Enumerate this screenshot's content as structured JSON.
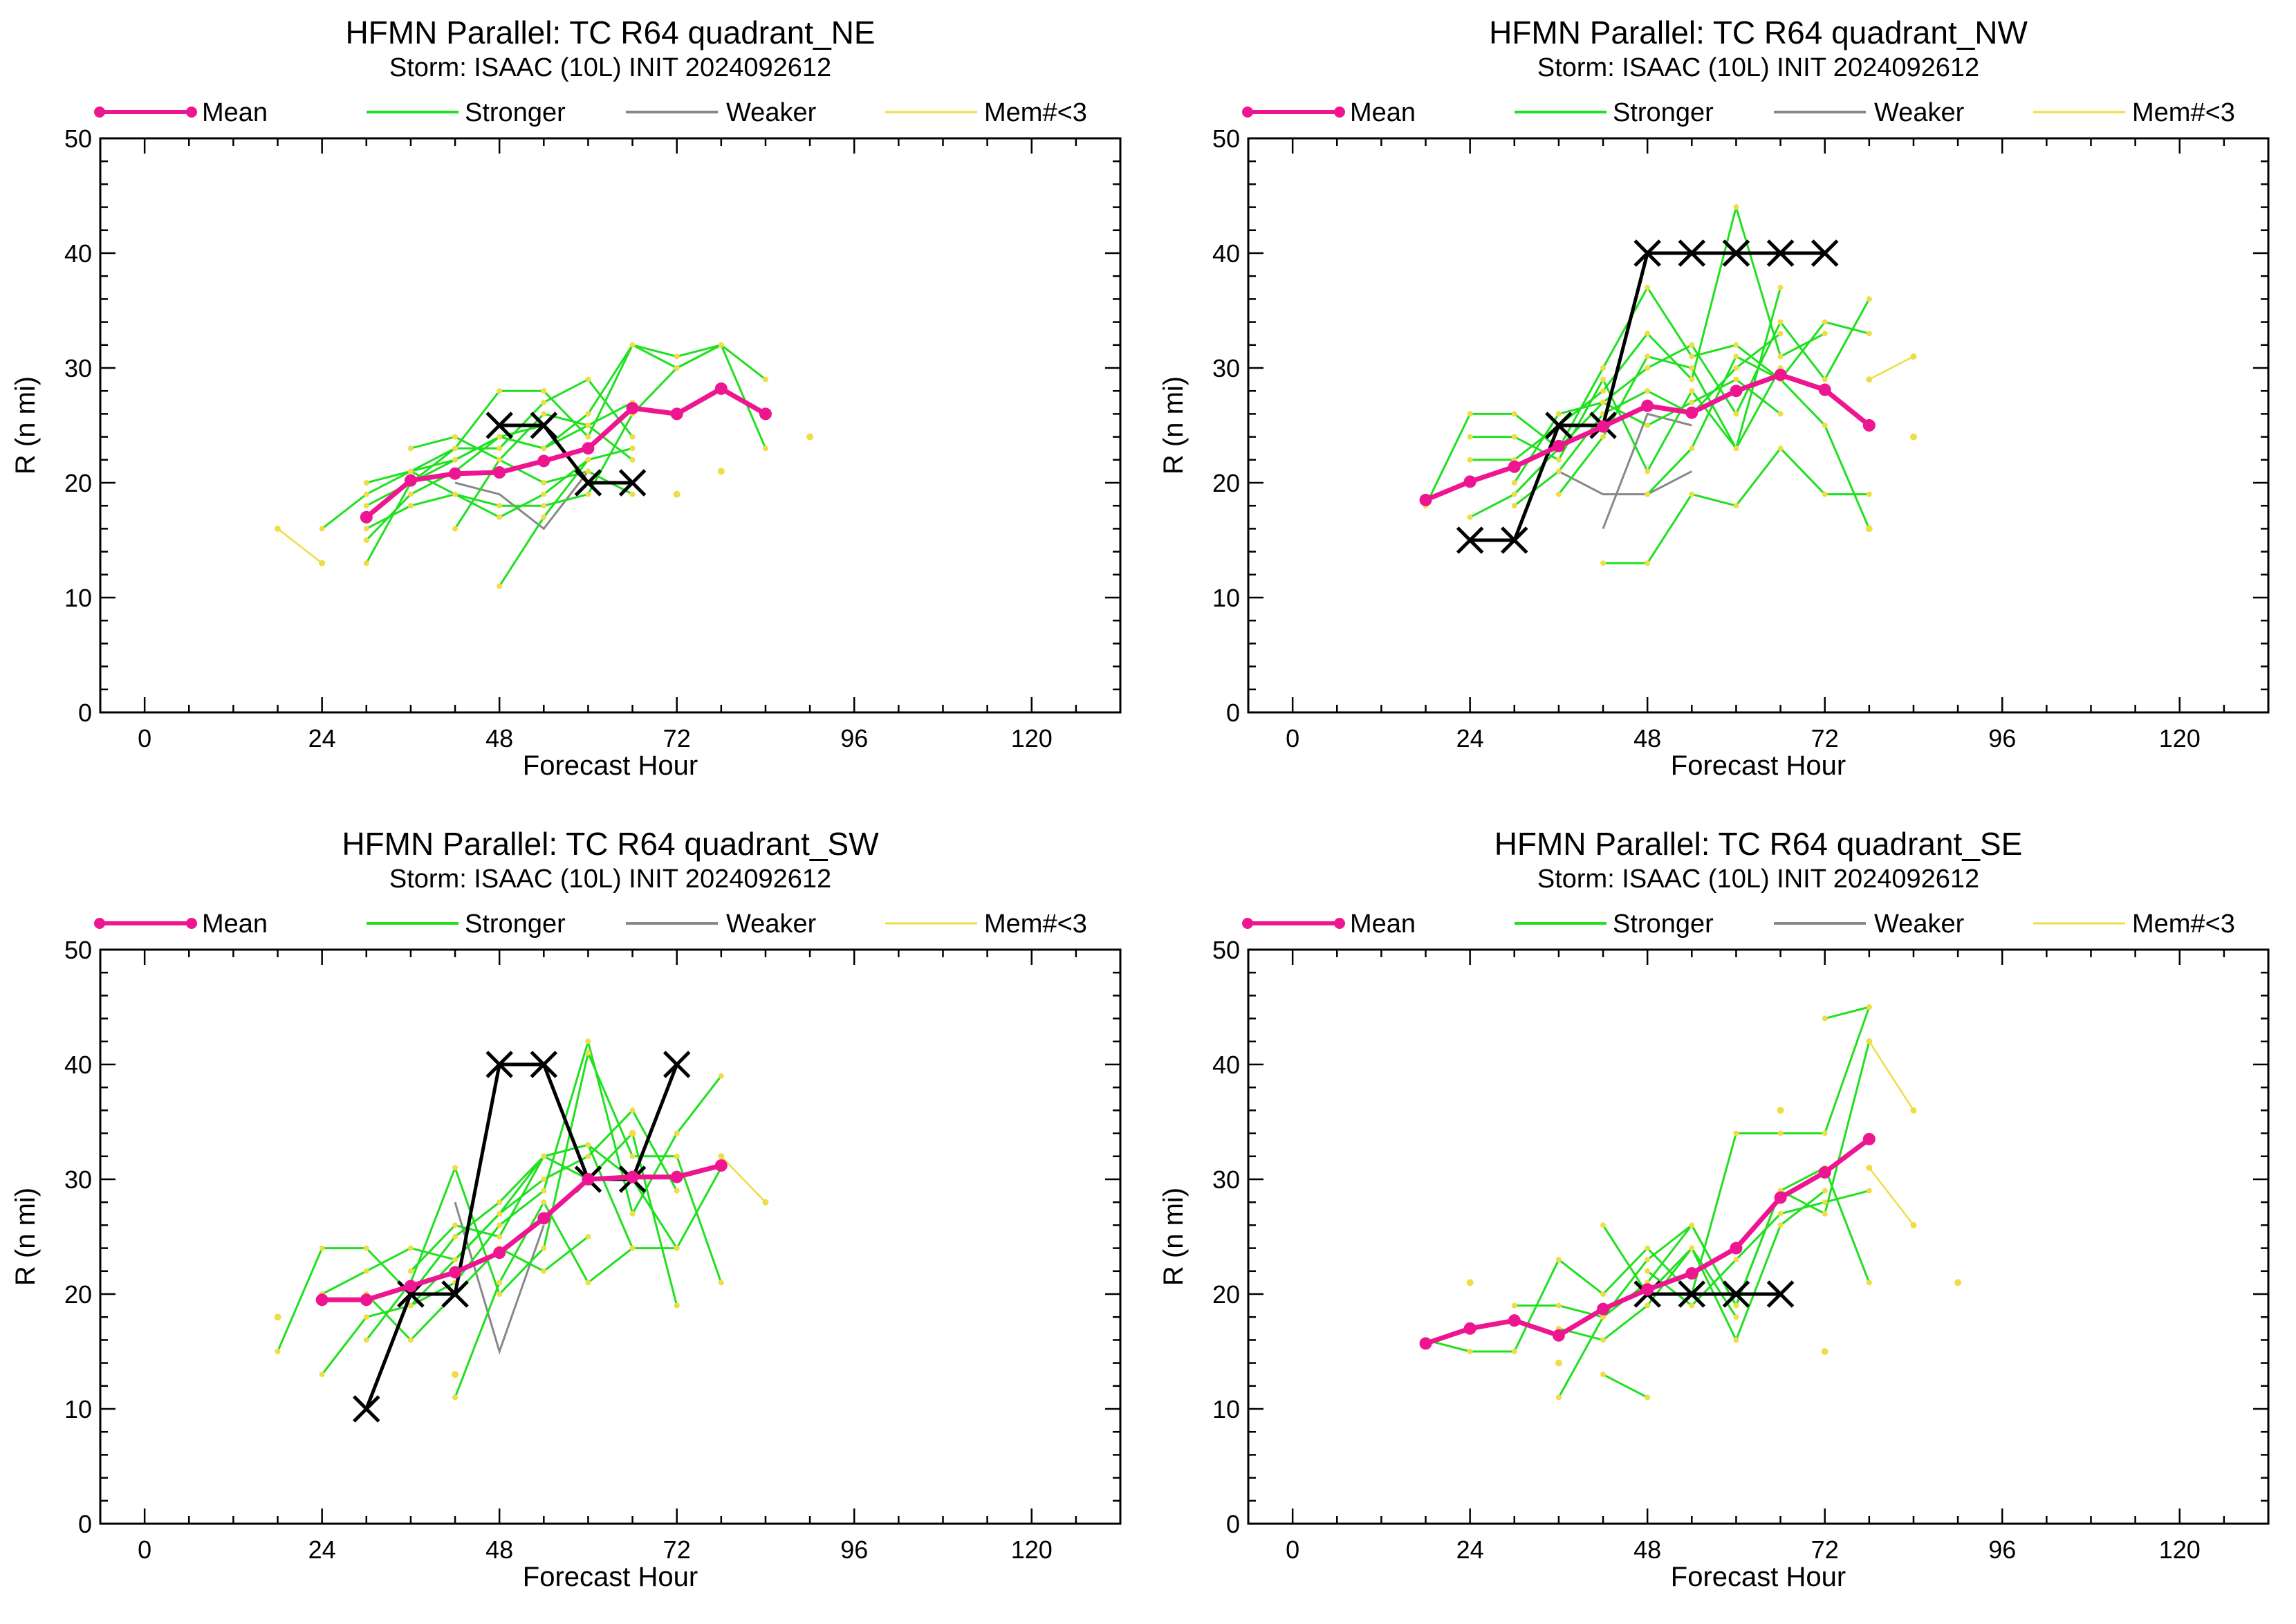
{
  "figure": {
    "legend": [
      {
        "label": "Mean",
        "color": "#ee1690"
      },
      {
        "label": "Stronger",
        "color": "#20e020"
      },
      {
        "label": "Weaker",
        "color": "#888888"
      },
      {
        "label": "Mem#<3",
        "color": "#eedd44"
      }
    ],
    "x_ticks": [
      "0",
      "24",
      "48",
      "72",
      "96",
      "120"
    ],
    "y_ticks": [
      "0",
      "10",
      "20",
      "30",
      "40",
      "50"
    ]
  },
  "chart_data": [
    {
      "type": "line",
      "title": "HFMN Parallel: TC  R64 quadrant_NE",
      "subtitle": "Storm: ISAAC (10L) INIT 2024092612",
      "xlabel": "Forecast Hour",
      "ylabel": "R (n mi)",
      "xlim": [
        -6,
        132
      ],
      "ylim": [
        0,
        50
      ],
      "mean": {
        "name": "Mean",
        "x": [
          30,
          36,
          42,
          48,
          54,
          60,
          66,
          72,
          78,
          84
        ],
        "y": [
          17,
          20.2,
          20.8,
          20.9,
          21.9,
          23,
          26.5,
          26,
          28.2,
          26
        ]
      },
      "best_track": {
        "x": [
          48,
          54,
          60,
          66
        ],
        "y": [
          25,
          25,
          20,
          20
        ]
      },
      "stronger": [
        {
          "x": [
            24,
            30,
            36,
            42,
            48,
            54
          ],
          "y": [
            16,
            19,
            21,
            22,
            24,
            25
          ]
        },
        {
          "x": [
            30,
            36,
            42,
            48,
            54,
            60,
            66,
            72,
            78,
            84
          ],
          "y": [
            18,
            20,
            22,
            24,
            23,
            26,
            32,
            31,
            32,
            29
          ]
        },
        {
          "x": [
            30,
            36,
            42,
            48,
            54,
            60,
            66
          ],
          "y": [
            13,
            20,
            23,
            23,
            27,
            29,
            24
          ]
        },
        {
          "x": [
            30,
            36,
            42,
            48,
            54,
            60,
            66,
            72,
            78
          ],
          "y": [
            20,
            21,
            19,
            18,
            18,
            19,
            26,
            30,
            32
          ]
        },
        {
          "x": [
            36,
            42,
            48,
            54,
            60,
            66,
            72,
            78,
            84
          ],
          "y": [
            21,
            23,
            28,
            28,
            24,
            32,
            30,
            32,
            23
          ]
        },
        {
          "x": [
            30,
            36,
            42,
            48,
            54,
            60,
            66
          ],
          "y": [
            15,
            19,
            21,
            24,
            23,
            25,
            27
          ]
        },
        {
          "x": [
            36,
            42,
            48,
            54,
            60,
            66
          ],
          "y": [
            23,
            24,
            22,
            26,
            25,
            22
          ]
        },
        {
          "x": [
            42,
            48,
            54,
            60,
            66
          ],
          "y": [
            16,
            22,
            20,
            21,
            19
          ]
        },
        {
          "x": [
            48,
            54,
            60,
            66
          ],
          "y": [
            11,
            17,
            22,
            23
          ]
        },
        {
          "x": [
            30,
            36,
            42,
            48,
            54,
            60
          ],
          "y": [
            16,
            18,
            19,
            17,
            19,
            22
          ]
        }
      ],
      "weaker": [
        {
          "x": [
            42,
            48,
            54,
            60
          ],
          "y": [
            20,
            19,
            16,
            21
          ]
        }
      ],
      "members_lt3": [
        {
          "x": [
            18,
            24
          ],
          "y": [
            16,
            13
          ]
        }
      ],
      "isolated_points": {
        "x": [
          90,
          78,
          72
        ],
        "y": [
          24,
          21,
          19
        ]
      }
    },
    {
      "type": "line",
      "title": "HFMN Parallel: TC  R64 quadrant_NW",
      "subtitle": "Storm: ISAAC (10L) INIT 2024092612",
      "xlabel": "Forecast Hour",
      "ylabel": "R (n mi)",
      "xlim": [
        -6,
        132
      ],
      "ylim": [
        0,
        50
      ],
      "mean": {
        "name": "Mean",
        "x": [
          18,
          24,
          30,
          36,
          42,
          48,
          54,
          60,
          66,
          72,
          78
        ],
        "y": [
          18.5,
          20.1,
          21.4,
          23.2,
          24.9,
          26.7,
          26.1,
          28,
          29.4,
          28.1,
          25
        ]
      },
      "best_track": {
        "x": [
          24,
          30,
          36,
          42,
          48,
          54,
          60,
          66,
          72
        ],
        "y": [
          15,
          15,
          25,
          25,
          40,
          40,
          40,
          40,
          40
        ]
      },
      "stronger": [
        {
          "x": [
            18,
            24,
            30,
            36,
            42,
            48,
            54,
            60,
            66,
            72,
            78
          ],
          "y": [
            18,
            26,
            26,
            23,
            30,
            37,
            31,
            32,
            29,
            34,
            33
          ]
        },
        {
          "x": [
            24,
            30,
            36,
            42,
            48,
            54,
            60,
            66,
            72
          ],
          "y": [
            22,
            22,
            25,
            28,
            33,
            29,
            44,
            31,
            33
          ]
        },
        {
          "x": [
            24,
            30,
            36,
            42,
            48,
            54,
            60,
            66,
            72,
            78
          ],
          "y": [
            17,
            19,
            23,
            27,
            30,
            32,
            26,
            34,
            29,
            36
          ]
        },
        {
          "x": [
            24,
            30,
            36,
            42,
            48,
            54,
            60,
            66
          ],
          "y": [
            24,
            24,
            22,
            29,
            21,
            28,
            23,
            37
          ]
        },
        {
          "x": [
            30,
            36,
            42,
            48,
            54,
            60,
            66
          ],
          "y": [
            18,
            21,
            26,
            28,
            26,
            30,
            33
          ]
        },
        {
          "x": [
            36,
            42,
            48,
            54,
            60,
            66
          ],
          "y": [
            19,
            24,
            31,
            30,
            23,
            30
          ]
        },
        {
          "x": [
            42,
            48,
            54,
            60,
            66,
            72,
            78
          ],
          "y": [
            13,
            13,
            19,
            18,
            23,
            19,
            19
          ]
        },
        {
          "x": [
            48,
            54,
            60,
            66,
            72,
            78
          ],
          "y": [
            19,
            23,
            31,
            29,
            25,
            16
          ]
        },
        {
          "x": [
            30,
            36,
            42,
            48,
            54,
            60,
            66
          ],
          "y": [
            20,
            26,
            27,
            25,
            27,
            29,
            26
          ]
        }
      ],
      "weaker": [
        {
          "x": [
            36,
            42,
            48,
            54
          ],
          "y": [
            21,
            19,
            19,
            21
          ]
        },
        {
          "x": [
            42,
            48,
            54
          ],
          "y": [
            16,
            26,
            25
          ]
        }
      ],
      "members_lt3": [
        {
          "x": [
            78,
            84
          ],
          "y": [
            29,
            31
          ]
        }
      ],
      "isolated_points": {
        "x": [
          84,
          78
        ],
        "y": [
          24,
          16
        ]
      }
    },
    {
      "type": "line",
      "title": "HFMN Parallel: TC  R64 quadrant_SW",
      "subtitle": "Storm: ISAAC (10L) INIT 2024092612",
      "xlabel": "Forecast Hour",
      "ylabel": "R (n mi)",
      "xlim": [
        -6,
        132
      ],
      "ylim": [
        0,
        50
      ],
      "mean": {
        "name": "Mean",
        "x": [
          24,
          30,
          36,
          42,
          48,
          54,
          60,
          66,
          72,
          78
        ],
        "y": [
          19.5,
          19.5,
          20.7,
          21.9,
          23.6,
          26.6,
          30,
          30.2,
          30.2,
          31.2
        ]
      },
      "best_track": {
        "x": [
          30,
          36,
          42,
          48,
          54,
          60,
          66,
          72
        ],
        "y": [
          10,
          20,
          20,
          40,
          40,
          30,
          30,
          40
        ]
      },
      "stronger": [
        {
          "x": [
            18,
            24,
            30,
            36,
            42,
            48,
            54,
            60,
            66,
            72,
            78
          ],
          "y": [
            15,
            24,
            24,
            20,
            25,
            28,
            32,
            33,
            30,
            24,
            31
          ]
        },
        {
          "x": [
            24,
            30,
            36,
            42,
            48,
            54,
            60,
            66,
            72,
            78
          ],
          "y": [
            13,
            18,
            19,
            21,
            26,
            29,
            42,
            27,
            34,
            39
          ]
        },
        {
          "x": [
            24,
            30,
            36,
            42,
            48,
            54,
            60,
            66
          ],
          "y": [
            20,
            22,
            24,
            23,
            27,
            32,
            33,
            24
          ]
        },
        {
          "x": [
            30,
            36,
            42,
            48,
            54,
            60,
            66,
            72,
            78
          ],
          "y": [
            16,
            21,
            31,
            20,
            24,
            41,
            32,
            32,
            21
          ]
        },
        {
          "x": [
            36,
            42,
            48,
            54,
            60,
            66,
            72
          ],
          "y": [
            22,
            26,
            25,
            32,
            30,
            34,
            19
          ]
        },
        {
          "x": [
            42,
            48,
            54,
            60,
            66,
            72
          ],
          "y": [
            11,
            21,
            28,
            21,
            24,
            24
          ]
        },
        {
          "x": [
            30,
            36,
            42,
            48,
            54,
            60
          ],
          "y": [
            20,
            16,
            20,
            24,
            22,
            25
          ]
        },
        {
          "x": [
            36,
            42,
            48,
            54,
            60,
            66,
            72
          ],
          "y": [
            19,
            23,
            27,
            30,
            32,
            36,
            29
          ]
        }
      ],
      "weaker": [
        {
          "x": [
            42,
            48,
            54
          ],
          "y": [
            28,
            15,
            26
          ]
        }
      ],
      "members_lt3": [
        {
          "x": [
            78,
            84
          ],
          "y": [
            32,
            28
          ]
        }
      ],
      "isolated_points": {
        "x": [
          18,
          42,
          66
        ],
        "y": [
          18,
          13,
          34
        ]
      }
    },
    {
      "type": "line",
      "title": "HFMN Parallel: TC  R64 quadrant_SE",
      "subtitle": "Storm: ISAAC (10L) INIT 2024092612",
      "xlabel": "Forecast Hour",
      "ylabel": "R (n mi)",
      "xlim": [
        -6,
        132
      ],
      "ylim": [
        0,
        50
      ],
      "mean": {
        "name": "Mean",
        "x": [
          18,
          24,
          30,
          36,
          42,
          48,
          54,
          60,
          66,
          72,
          78
        ],
        "y": [
          15.7,
          17,
          17.7,
          16.4,
          18.7,
          20.4,
          21.8,
          24,
          28.4,
          30.6,
          33.5
        ]
      },
      "best_track": {
        "x": [
          48,
          54,
          60,
          66
        ],
        "y": [
          20,
          20,
          20,
          20
        ]
      },
      "stronger": [
        {
          "x": [
            18,
            24,
            30,
            36,
            42,
            48,
            54,
            60,
            66,
            72,
            78
          ],
          "y": [
            16,
            15,
            15,
            23,
            20,
            24,
            20,
            34,
            34,
            34,
            45
          ]
        },
        {
          "x": [
            30,
            36,
            42,
            48,
            54,
            60,
            66,
            72,
            78
          ],
          "y": [
            19,
            19,
            18,
            23,
            26,
            19,
            29,
            27,
            42
          ]
        },
        {
          "x": [
            36,
            42,
            48,
            54,
            60,
            66,
            72,
            78
          ],
          "y": [
            11,
            18,
            21,
            26,
            19,
            29,
            31,
            21
          ]
        },
        {
          "x": [
            42,
            48,
            54,
            60,
            66,
            72
          ],
          "y": [
            26,
            20,
            24,
            16,
            26,
            29
          ]
        },
        {
          "x": [
            48,
            54,
            60,
            66,
            72,
            78
          ],
          "y": [
            22,
            19,
            23,
            27,
            28,
            29
          ]
        },
        {
          "x": [
            42,
            48
          ],
          "y": [
            13,
            11
          ]
        },
        {
          "x": [
            72,
            78
          ],
          "y": [
            44,
            45
          ]
        },
        {
          "x": [
            36,
            42,
            48,
            54,
            60
          ],
          "y": [
            17,
            16,
            19,
            24,
            18
          ]
        }
      ],
      "weaker": [],
      "members_lt3": [
        {
          "x": [
            78,
            84
          ],
          "y": [
            42,
            36
          ]
        },
        {
          "x": [
            78,
            84
          ],
          "y": [
            31,
            26
          ]
        }
      ],
      "isolated_points": {
        "x": [
          24,
          90,
          72,
          66,
          36
        ],
        "y": [
          21,
          21,
          15,
          36,
          14
        ]
      }
    }
  ]
}
